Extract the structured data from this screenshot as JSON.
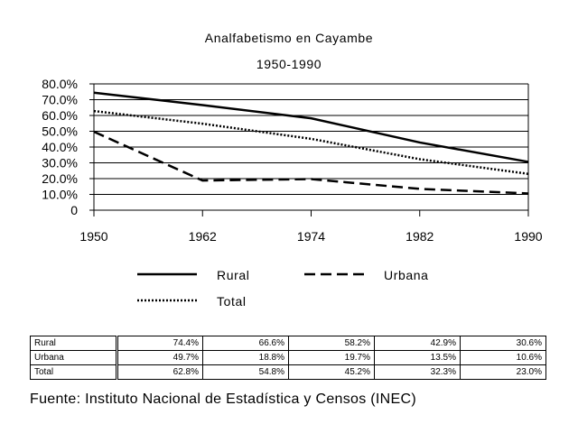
{
  "chart_data": {
    "type": "line",
    "title": "Analfabetismo en Cayambe",
    "subtitle": "1950-1990",
    "xlabel": "",
    "ylabel": "",
    "x": [
      "1950",
      "1962",
      "1974",
      "1982",
      "1990"
    ],
    "ylim": [
      0,
      80
    ],
    "yticks": [
      "0",
      "10.0%",
      "20.0%",
      "30.0%",
      "40.0%",
      "50.0%",
      "60.0%",
      "70.0%",
      "80.0%"
    ],
    "grid": true,
    "legend_placement": "bottom",
    "series": [
      {
        "name": "Rural",
        "values": [
          74.4,
          66.6,
          58.2,
          42.9,
          30.6
        ],
        "labels": [
          "74.4%",
          "66.6%",
          "58.2%",
          "42.9%",
          "30.6%"
        ],
        "style": "solid"
      },
      {
        "name": "Urbana",
        "values": [
          49.7,
          18.8,
          19.7,
          13.5,
          10.6
        ],
        "labels": [
          "49.7%",
          "18.8%",
          "19.7%",
          "13.5%",
          "10.6%"
        ],
        "style": "dashed"
      },
      {
        "name": "Total",
        "values": [
          62.8,
          54.8,
          45.2,
          32.3,
          23.0
        ],
        "labels": [
          "62.8%",
          "54.8%",
          "45.2%",
          "32.3%",
          "23.0%"
        ],
        "style": "dotted"
      }
    ]
  },
  "source": "Fuente: Instituto Nacional de Estadística y Censos (INEC)",
  "colors": {
    "line": "#000000",
    "background": "#ffffff"
  }
}
